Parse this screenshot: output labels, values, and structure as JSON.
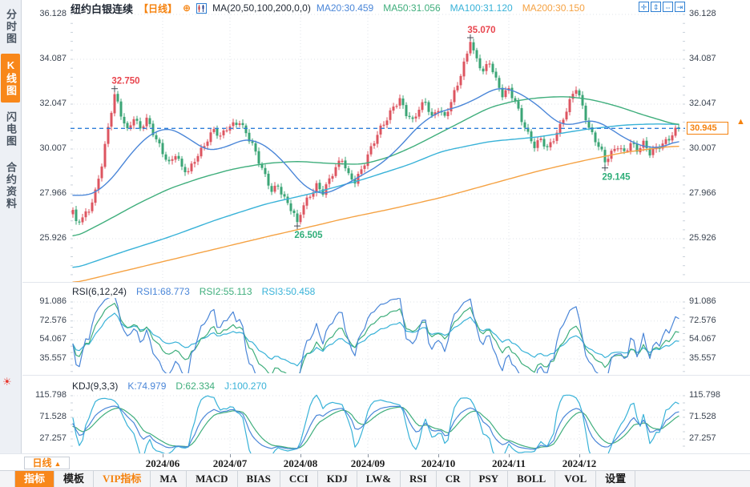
{
  "colors": {
    "up": "#dd5560",
    "down": "#3ba576",
    "ma20": "#4a86d8",
    "ma50": "#3fae7c",
    "ma100": "#38b2d8",
    "ma200": "#f5a243",
    "accent": "#f5820e",
    "dashed": "#2f7fd9",
    "grid": "#dfe3e9",
    "minor": "#c9d1da",
    "axis_text": "#3a4350",
    "up_label": "#e8454e",
    "down_label": "#2fae79",
    "icon_blue": "#2e7fd2",
    "alarm": "#e8382e"
  },
  "sidebar": {
    "tabs": [
      {
        "label": "分时图",
        "active": false
      },
      {
        "label": "K线图",
        "active": true
      },
      {
        "label": "闪电图",
        "active": false
      },
      {
        "label": "合约资料",
        "active": false
      }
    ],
    "alarm_glyph": "☀"
  },
  "header": {
    "title": "纽约白银连续",
    "period_tag": "【日线】",
    "plus_glyph": "⊕",
    "formula": "MA(20,50,100,200,0,0)",
    "ma_values": [
      {
        "label": "MA20:30.459",
        "color": "#4a86d8"
      },
      {
        "label": "MA50:31.056",
        "color": "#3fae7c"
      },
      {
        "label": "MA100:31.120",
        "color": "#38b2d8"
      },
      {
        "label": "MA200:30.150",
        "color": "#f5a243"
      }
    ],
    "icons": [
      {
        "name": "pan-icon",
        "glyph": "✛"
      },
      {
        "name": "zoom-y-axis-icon",
        "glyph": "⇕"
      },
      {
        "name": "zoom-x-axis-icon",
        "glyph": "⇔"
      },
      {
        "name": "restore-view-icon",
        "glyph": "⇥"
      }
    ]
  },
  "rsi_header": {
    "title": "RSI(6,12,24)",
    "values": [
      {
        "label": "RSI1:68.773",
        "color": "#4a86d8"
      },
      {
        "label": "RSI2:55.113",
        "color": "#3fae7c"
      },
      {
        "label": "RSI3:50.458",
        "color": "#38b2d8"
      }
    ]
  },
  "kdj_header": {
    "title": "KDJ(9,3,3)",
    "values": [
      {
        "label": "K:74.979",
        "color": "#4a86d8"
      },
      {
        "label": "D:62.334",
        "color": "#3fae7c"
      },
      {
        "label": "J:100.270",
        "color": "#38b2d8"
      }
    ]
  },
  "xaxis": {
    "period_label": "日线",
    "period_arrow": "▲"
  },
  "price_marker": {
    "label": "30.945",
    "arrow": "▲"
  },
  "toolbar": {
    "tabs": [
      {
        "label": "指标",
        "active": true
      },
      {
        "label": "模板"
      },
      {
        "label": "VIP指标",
        "vip": true
      },
      {
        "label": "MA"
      },
      {
        "label": "MACD"
      },
      {
        "label": "BIAS"
      },
      {
        "label": "CCI"
      },
      {
        "label": "KDJ"
      },
      {
        "label": "LW&"
      },
      {
        "label": "RSI"
      },
      {
        "label": "CR"
      },
      {
        "label": "PSY"
      },
      {
        "label": "BOLL"
      },
      {
        "label": "VOL"
      },
      {
        "label": "设置"
      }
    ]
  },
  "chart_data": [
    {
      "type": "candlestick",
      "symbol": "纽约白银连续",
      "period": "日线",
      "n": 190,
      "ylim": [
        24.2,
        36.6
      ],
      "yticks": [
        36.128,
        34.087,
        32.047,
        30.007,
        27.966,
        25.926
      ],
      "months": [
        [
          "2024/06",
          28
        ],
        [
          "2024/07",
          49
        ],
        [
          "2024/08",
          71
        ],
        [
          "2024/09",
          92
        ],
        [
          "2024/10",
          114
        ],
        [
          "2024/11",
          136
        ],
        [
          "2024/12",
          158
        ]
      ],
      "close_path": [
        [
          0,
          27.1
        ],
        [
          1,
          26.6
        ],
        [
          3,
          26.9
        ],
        [
          5,
          27.3
        ],
        [
          7,
          28.1
        ],
        [
          9,
          29.3
        ],
        [
          11,
          30.9
        ],
        [
          13,
          32.5
        ],
        [
          15,
          31.6
        ],
        [
          17,
          30.9
        ],
        [
          19,
          31.5
        ],
        [
          21,
          30.9
        ],
        [
          23,
          31.3
        ],
        [
          25,
          30.7
        ],
        [
          28,
          29.9
        ],
        [
          30,
          29.4
        ],
        [
          32,
          29.8
        ],
        [
          34,
          29.1
        ],
        [
          36,
          28.9
        ],
        [
          38,
          29.5
        ],
        [
          40,
          30.0
        ],
        [
          42,
          30.5
        ],
        [
          44,
          30.9
        ],
        [
          46,
          30.5
        ],
        [
          48,
          30.9
        ],
        [
          50,
          31.1
        ],
        [
          52,
          31.3
        ],
        [
          54,
          30.8
        ],
        [
          56,
          30.2
        ],
        [
          58,
          29.4
        ],
        [
          60,
          28.7
        ],
        [
          62,
          28.1
        ],
        [
          64,
          28.4
        ],
        [
          66,
          27.8
        ],
        [
          68,
          27.3
        ],
        [
          70,
          26.7
        ],
        [
          72,
          27.4
        ],
        [
          74,
          27.9
        ],
        [
          76,
          28.4
        ],
        [
          78,
          28.1
        ],
        [
          80,
          28.6
        ],
        [
          82,
          29.1
        ],
        [
          84,
          29.5
        ],
        [
          86,
          28.8
        ],
        [
          88,
          28.6
        ],
        [
          90,
          29.1
        ],
        [
          92,
          29.7
        ],
        [
          94,
          30.3
        ],
        [
          96,
          30.9
        ],
        [
          98,
          31.4
        ],
        [
          100,
          32.0
        ],
        [
          102,
          32.3
        ],
        [
          104,
          31.6
        ],
        [
          106,
          31.2
        ],
        [
          108,
          31.8
        ],
        [
          110,
          32.2
        ],
        [
          112,
          31.5
        ],
        [
          114,
          31.9
        ],
        [
          116,
          31.4
        ],
        [
          118,
          32.1
        ],
        [
          120,
          32.9
        ],
        [
          122,
          33.9
        ],
        [
          124,
          34.88
        ],
        [
          126,
          34.1
        ],
        [
          128,
          33.5
        ],
        [
          130,
          33.9
        ],
        [
          132,
          33.1
        ],
        [
          134,
          32.5
        ],
        [
          136,
          32.8
        ],
        [
          138,
          32.2
        ],
        [
          140,
          31.3
        ],
        [
          142,
          30.6
        ],
        [
          144,
          30.1
        ],
        [
          146,
          30.5
        ],
        [
          148,
          30.1
        ],
        [
          150,
          30.5
        ],
        [
          152,
          31.0
        ],
        [
          154,
          31.7
        ],
        [
          156,
          32.5
        ],
        [
          157,
          32.8
        ],
        [
          159,
          32.0
        ],
        [
          161,
          31.0
        ],
        [
          163,
          30.4
        ],
        [
          165,
          29.8
        ],
        [
          166,
          29.4
        ],
        [
          168,
          29.8
        ],
        [
          170,
          30.2
        ],
        [
          172,
          29.9
        ],
        [
          174,
          30.3
        ],
        [
          176,
          29.9
        ],
        [
          178,
          30.2
        ],
        [
          180,
          29.8
        ],
        [
          182,
          30.1
        ],
        [
          184,
          30.3
        ],
        [
          186,
          30.5
        ],
        [
          188,
          30.8
        ],
        [
          189,
          30.945
        ]
      ],
      "close_pins": [
        [
          13,
          32.5
        ],
        [
          70,
          26.68
        ],
        [
          124,
          34.88
        ],
        [
          166,
          29.4
        ],
        [
          189,
          30.945
        ]
      ],
      "high_pins": [
        [
          13,
          32.75
        ],
        [
          124,
          35.07
        ]
      ],
      "low_pins": [
        [
          70,
          26.505
        ],
        [
          166,
          29.145
        ]
      ],
      "ma": {
        "ma20": [
          [
            0,
            27.9
          ],
          [
            6,
            27.9
          ],
          [
            12,
            28.6
          ],
          [
            18,
            29.8
          ],
          [
            24,
            30.7
          ],
          [
            30,
            31.0
          ],
          [
            36,
            30.5
          ],
          [
            42,
            29.9
          ],
          [
            48,
            30.1
          ],
          [
            54,
            30.5
          ],
          [
            60,
            30.2
          ],
          [
            66,
            29.4
          ],
          [
            72,
            28.3
          ],
          [
            78,
            27.9
          ],
          [
            84,
            28.3
          ],
          [
            90,
            28.8
          ],
          [
            96,
            29.3
          ],
          [
            102,
            30.1
          ],
          [
            108,
            31.1
          ],
          [
            114,
            31.7
          ],
          [
            120,
            31.9
          ],
          [
            126,
            32.3
          ],
          [
            132,
            32.8
          ],
          [
            136,
            32.75
          ],
          [
            140,
            32.5
          ],
          [
            146,
            31.9
          ],
          [
            150,
            31.3
          ],
          [
            154,
            31.05
          ],
          [
            158,
            31.2
          ],
          [
            162,
            31.35
          ],
          [
            166,
            31.1
          ],
          [
            172,
            30.5
          ],
          [
            178,
            30.1
          ],
          [
            184,
            30.05
          ],
          [
            189,
            30.459
          ]
        ],
        "ma50": [
          [
            0,
            25.95
          ],
          [
            10,
            26.7
          ],
          [
            20,
            27.5
          ],
          [
            30,
            28.2
          ],
          [
            40,
            28.7
          ],
          [
            50,
            29.1
          ],
          [
            60,
            29.35
          ],
          [
            70,
            29.45
          ],
          [
            80,
            29.35
          ],
          [
            90,
            29.3
          ],
          [
            98,
            29.6
          ],
          [
            106,
            30.1
          ],
          [
            114,
            30.7
          ],
          [
            122,
            31.3
          ],
          [
            130,
            31.9
          ],
          [
            138,
            32.2
          ],
          [
            146,
            32.35
          ],
          [
            154,
            32.4
          ],
          [
            162,
            32.25
          ],
          [
            170,
            31.95
          ],
          [
            178,
            31.55
          ],
          [
            184,
            31.3
          ],
          [
            189,
            31.056
          ]
        ],
        "ma100": [
          [
            0,
            24.55
          ],
          [
            15,
            25.3
          ],
          [
            30,
            26.0
          ],
          [
            45,
            26.8
          ],
          [
            60,
            27.5
          ],
          [
            75,
            28.0
          ],
          [
            90,
            28.6
          ],
          [
            105,
            29.3
          ],
          [
            115,
            29.9
          ],
          [
            130,
            30.35
          ],
          [
            145,
            30.55
          ],
          [
            160,
            30.9
          ],
          [
            172,
            31.1
          ],
          [
            182,
            31.15
          ],
          [
            189,
            31.12
          ]
        ],
        "ma200": [
          [
            0,
            23.9
          ],
          [
            20,
            24.6
          ],
          [
            40,
            25.3
          ],
          [
            60,
            26.0
          ],
          [
            75,
            26.5
          ],
          [
            85,
            26.85
          ],
          [
            100,
            27.3
          ],
          [
            115,
            27.8
          ],
          [
            130,
            28.4
          ],
          [
            145,
            29.0
          ],
          [
            160,
            29.5
          ],
          [
            172,
            29.85
          ],
          [
            182,
            30.05
          ],
          [
            189,
            30.15
          ]
        ]
      },
      "annotations": [
        {
          "index": 13,
          "price": 32.75,
          "label": "32.750",
          "color": "#e8454e",
          "side": "above"
        },
        {
          "index": 124,
          "price": 35.07,
          "label": "35.070",
          "color": "#e8454e",
          "side": "above"
        },
        {
          "index": 70,
          "price": 26.505,
          "label": "26.505",
          "color": "#2fae79",
          "side": "below"
        },
        {
          "index": 166,
          "price": 29.145,
          "label": "29.145",
          "color": "#2fae79",
          "side": "below"
        }
      ],
      "current_price": 30.945,
      "current_price_label": "30.945"
    },
    {
      "type": "line",
      "name": "RSI",
      "periods": [
        6,
        12,
        24
      ],
      "yticks": [
        91.086,
        72.576,
        54.067,
        35.557
      ],
      "last_values": [
        68.773,
        55.113,
        50.458
      ]
    },
    {
      "type": "line",
      "name": "KDJ",
      "periods": [
        9,
        3,
        3
      ],
      "yticks": [
        115.798,
        71.528,
        27.257
      ],
      "last_values": [
        74.979,
        62.334,
        100.27
      ]
    }
  ]
}
